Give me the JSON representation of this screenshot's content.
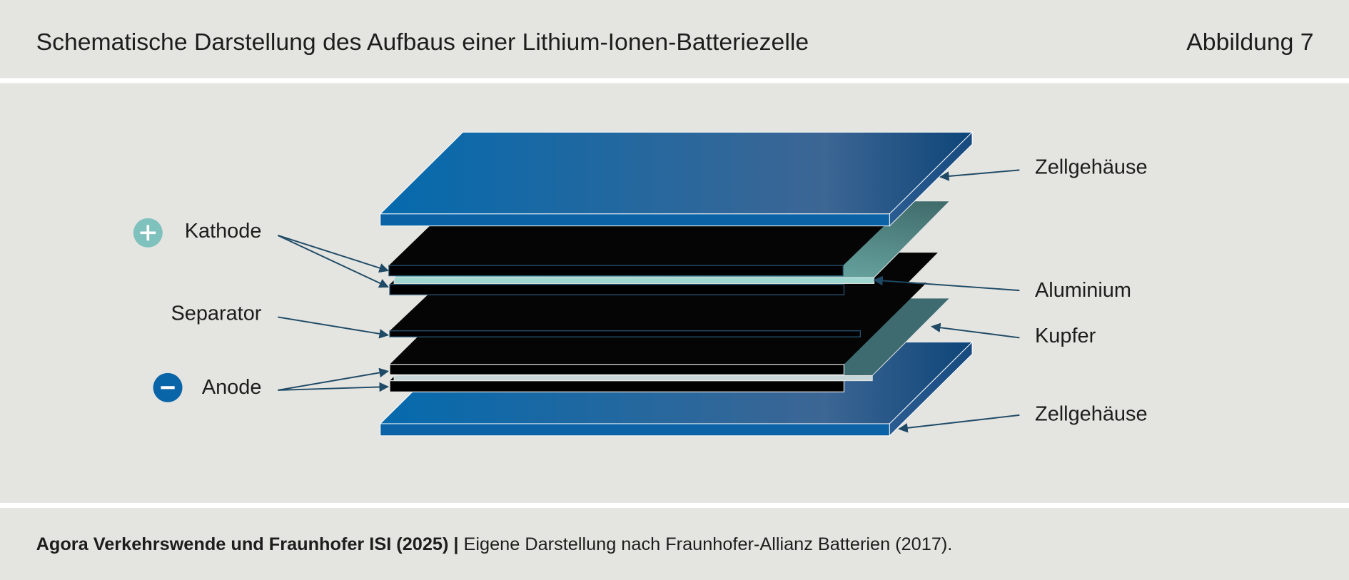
{
  "header": {
    "title": "Schematische Darstellung des Aufbaus einer Lithium-Ionen-Batteriezelle",
    "figure_label": "Abbildung 7"
  },
  "diagram": {
    "left_labels": [
      "Kathode",
      "Separator",
      "Anode"
    ],
    "right_labels": [
      "Zellgehäuse",
      "Aluminium",
      "Kupfer",
      "Zellgehäuse"
    ]
  },
  "footer": {
    "source": "Agora Verkehrswende und Fraunhofer ISI (2025) |",
    "note": "Eigene Darstellung nach Fraunhofer-Allianz Batterien (2017)."
  }
}
